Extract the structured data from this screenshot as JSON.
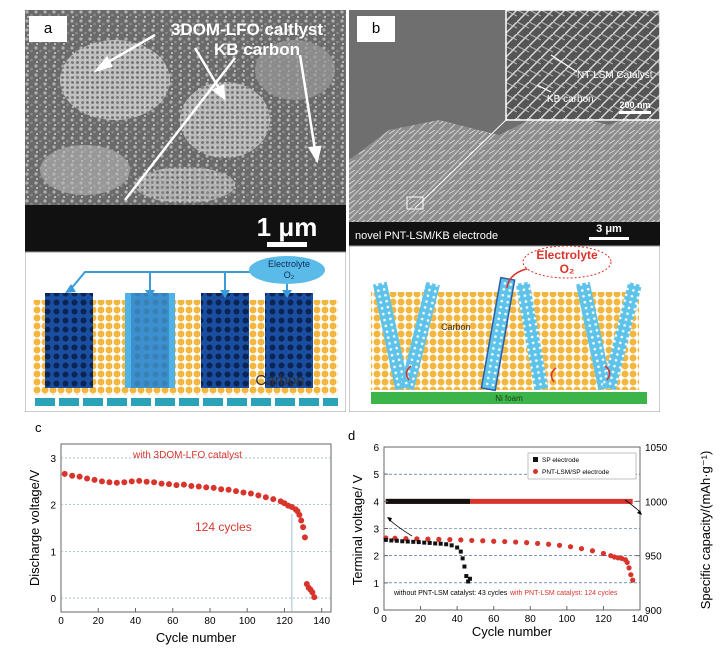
{
  "panel_a": {
    "label": "a",
    "annotation_line1": "3DOM-LFO caltlyst",
    "annotation_line2": "KB carbon",
    "scale_bar": "1 μm",
    "electrolyte_line1": "Electrolyte",
    "electrolyte_line2": "O₂",
    "carbon_label": "Carbon"
  },
  "panel_b": {
    "label": "b",
    "inset_catalyst": "NT-LSM Catalyst",
    "inset_carbon": "KB carbon",
    "inset_scale": "200 nm",
    "caption": "novel PNT-LSM/KB electrode",
    "scale_bar": "3 μm",
    "electrolyte_line1": "Electrolyte",
    "electrolyte_line2": "O₂",
    "carbon_label": "Carbon",
    "foam_label": "Ni foam"
  },
  "chart_c": {
    "label": "c",
    "xlabel": "Cycle number",
    "ylabel": "Discharge voltage/V",
    "legend": "with 3DOM-LFO catalyst",
    "annotation": "124 cycles",
    "xticks": [
      "0",
      "20",
      "40",
      "60",
      "80",
      "100",
      "120",
      "140"
    ],
    "yticks": [
      "0",
      "1",
      "2",
      "3"
    ]
  },
  "chart_d": {
    "label": "d",
    "xlabel": "Cycle number",
    "ylabel": "Terminal voltage/ V",
    "ylabel_right": "Specific capacity/(mAh·g⁻¹)",
    "legend_sp": "SP electrode",
    "legend_pnt": "PNT-LSM/SP electrode",
    "note_without": "without PNT-LSM catalyst: 43 cycles",
    "note_with": "with PNT-LSM catalyst: 124 cycles",
    "xticks": [
      "0",
      "20",
      "40",
      "60",
      "80",
      "100",
      "120",
      "140"
    ],
    "yticks": [
      "0",
      "1",
      "2",
      "3",
      "4",
      "5",
      "6"
    ],
    "yticks_right": [
      "900",
      "950",
      "1000",
      "1050"
    ]
  },
  "chart_data": [
    {
      "type": "scatter",
      "xlim": [
        0,
        145
      ],
      "ylim": [
        -0.3,
        3.3
      ],
      "series": [
        {
          "name": "with 3DOM-LFO catalyst",
          "color": "#d9342b",
          "x": [
            2,
            6,
            10,
            14,
            18,
            22,
            26,
            30,
            34,
            38,
            42,
            46,
            50,
            54,
            58,
            62,
            66,
            70,
            74,
            78,
            82,
            86,
            90,
            94,
            98,
            102,
            106,
            110,
            114,
            118,
            120,
            122,
            124,
            126,
            127,
            128,
            129,
            130,
            131,
            132,
            133,
            134,
            135,
            136
          ],
          "y": [
            2.66,
            2.62,
            2.6,
            2.56,
            2.53,
            2.5,
            2.48,
            2.47,
            2.48,
            2.5,
            2.51,
            2.49,
            2.48,
            2.45,
            2.44,
            2.42,
            2.43,
            2.4,
            2.39,
            2.37,
            2.36,
            2.33,
            2.32,
            2.29,
            2.26,
            2.24,
            2.2,
            2.16,
            2.12,
            2.07,
            2.03,
            1.98,
            1.95,
            1.9,
            1.86,
            1.78,
            1.66,
            1.52,
            1.3,
            0.3,
            0.22,
            0.18,
            0.12,
            0.02
          ]
        }
      ]
    },
    {
      "type": "scatter",
      "xlim": [
        0,
        140
      ],
      "ylim": [
        0,
        6
      ],
      "y2lim": [
        900,
        1050
      ],
      "series": [
        {
          "name": "SP electrode",
          "color": "#111111",
          "x": [
            1,
            4,
            7,
            10,
            13,
            16,
            19,
            22,
            25,
            28,
            31,
            34,
            37,
            40,
            42,
            43,
            44,
            45,
            46,
            47
          ],
          "y": [
            2.58,
            2.56,
            2.55,
            2.53,
            2.52,
            2.51,
            2.5,
            2.48,
            2.47,
            2.45,
            2.44,
            2.42,
            2.38,
            2.3,
            2.15,
            1.9,
            1.6,
            1.25,
            1.05,
            1.15
          ],
          "capacity": [
            1000,
            1000
          ]
        },
        {
          "name": "PNT-LSM/SP electrode",
          "color": "#d9342b",
          "x": [
            1,
            6,
            12,
            18,
            24,
            30,
            36,
            42,
            48,
            54,
            60,
            66,
            72,
            78,
            84,
            90,
            96,
            102,
            108,
            114,
            120,
            124,
            126,
            128,
            130,
            132,
            133,
            134,
            135,
            136
          ],
          "y": [
            2.65,
            2.64,
            2.63,
            2.62,
            2.61,
            2.6,
            2.59,
            2.58,
            2.56,
            2.55,
            2.53,
            2.52,
            2.5,
            2.48,
            2.45,
            2.42,
            2.38,
            2.33,
            2.26,
            2.18,
            2.08,
            2.0,
            1.95,
            1.92,
            1.9,
            1.85,
            1.75,
            1.55,
            1.3,
            1.1
          ],
          "capacity": [
            1000,
            1000
          ]
        }
      ]
    }
  ]
}
